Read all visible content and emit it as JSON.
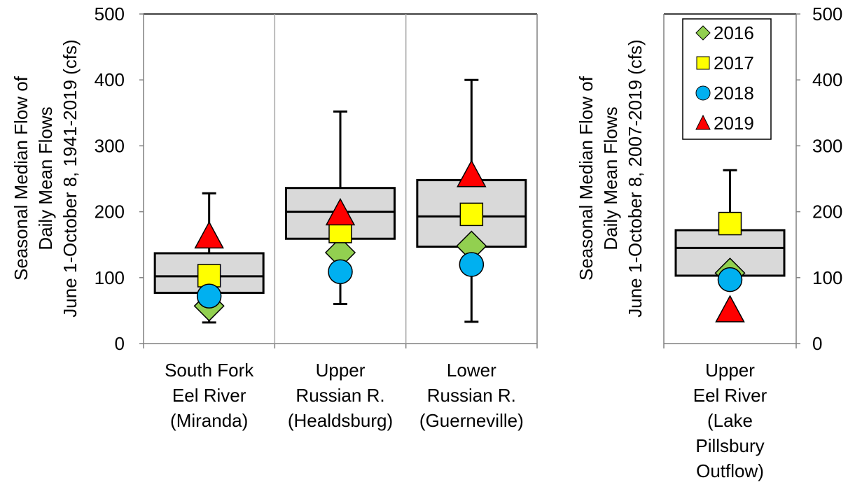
{
  "chart_data": [
    {
      "type": "box",
      "ylabel_lines": [
        "Seasonal Median Flow of",
        "Daily Mean Flows",
        "June 1-October 8, 1941-2019 (cfs)"
      ],
      "y_ticks": [
        "0",
        "100",
        "200",
        "300",
        "400",
        "500"
      ],
      "ylim": [
        0,
        500
      ],
      "grid": "vertical separators only",
      "categories": [
        {
          "label_lines": [
            "South Fork",
            "Eel River",
            "(Miranda)"
          ],
          "box": {
            "min": 32,
            "q1": 77,
            "median": 102,
            "q3": 137,
            "max": 228
          },
          "points": {
            "2016": 57,
            "2017": 103,
            "2018": 72,
            "2019": 162
          }
        },
        {
          "label_lines": [
            "Upper",
            "Russian R.",
            "(Healdsburg)"
          ],
          "box": {
            "min": 60,
            "q1": 159,
            "median": 200,
            "q3": 236,
            "max": 352
          },
          "points": {
            "2016": 138,
            "2017": 170,
            "2018": 109,
            "2019": 197
          }
        },
        {
          "label_lines": [
            "Lower",
            "Russian R.",
            "(Guerneville)"
          ],
          "box": {
            "min": 33,
            "q1": 147,
            "median": 193,
            "q3": 248,
            "max": 400
          },
          "points": {
            "2016": 148,
            "2017": 196,
            "2018": 120,
            "2019": 255
          }
        }
      ]
    },
    {
      "type": "box",
      "ylabel_lines": [
        "Seasonal Median Flow of",
        "Daily Mean Flows",
        "June 1-October 8, 2007-2019 (cfs)"
      ],
      "y_ticks": [
        "0",
        "100",
        "200",
        "300",
        "400",
        "500"
      ],
      "ylim": [
        0,
        500
      ],
      "categories": [
        {
          "label_lines": [
            "Upper",
            "Eel River",
            "(Lake",
            "Pillsbury",
            "Outflow)"
          ],
          "box": {
            "min": 103,
            "q1": 103,
            "median": 145,
            "q3": 172,
            "max": 263
          },
          "points": {
            "2016": 107,
            "2017": 182,
            "2018": 97,
            "2019": 50
          }
        }
      ]
    }
  ],
  "legend": {
    "placement": "top-right of right panel",
    "entries": [
      {
        "label": "2016",
        "marker": "diamond",
        "color": "#92D050"
      },
      {
        "label": "2017",
        "marker": "square",
        "color": "#FFFF00"
      },
      {
        "label": "2018",
        "marker": "circle",
        "color": "#00B0F0"
      },
      {
        "label": "2019",
        "marker": "triangle",
        "color": "#FF0000"
      }
    ]
  },
  "colors": {
    "box_fill": "#D9D9D9",
    "stroke": "#000000",
    "separator": "#A6A6A6"
  }
}
